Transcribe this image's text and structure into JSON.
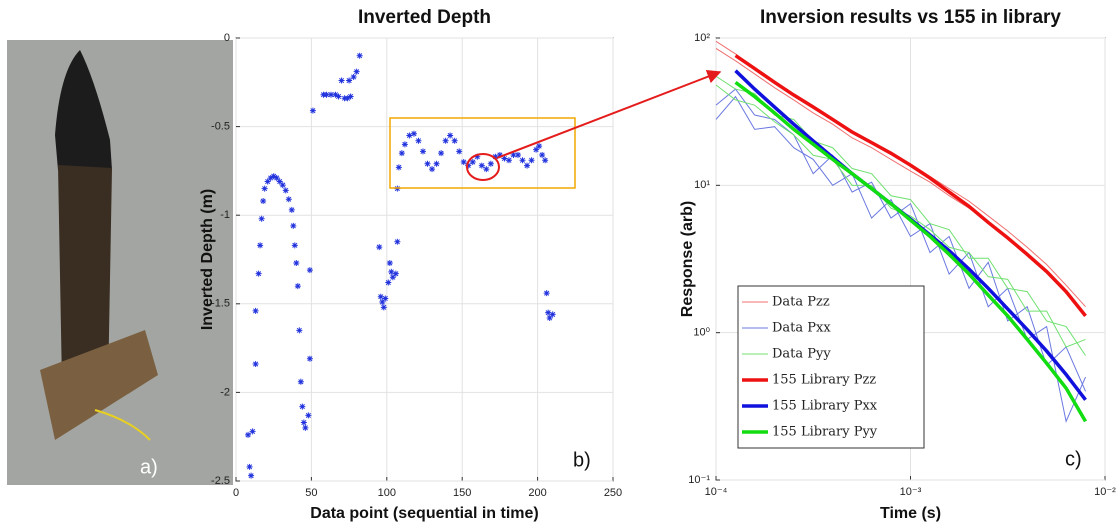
{
  "photo": {
    "panel_label": "a)"
  },
  "chart_data": [
    {
      "type": "scatter",
      "title": "Inverted Depth",
      "xlabel": "Data point (sequential in time)",
      "ylabel": "Inverted Depth (m)",
      "panel_label": "b)",
      "xlim": [
        0,
        250
      ],
      "ylim": [
        -2.5,
        0
      ],
      "xticks": [
        0,
        50,
        100,
        150,
        200,
        250
      ],
      "yticks": [
        -2.5,
        -2,
        -1.5,
        -1,
        -0.5,
        0
      ],
      "grid": true,
      "color": "#2233dd",
      "marker": "*",
      "x": [
        8,
        9,
        10,
        11,
        13,
        13,
        15,
        16,
        17,
        18,
        19,
        21,
        23,
        25,
        27,
        29,
        31,
        33,
        35,
        37,
        38,
        39,
        40,
        41,
        42,
        43,
        44,
        45,
        46,
        48,
        49,
        49,
        51,
        58,
        60,
        63,
        66,
        68,
        70,
        72,
        74,
        76,
        75,
        78,
        80,
        82,
        95,
        96,
        97,
        98,
        99,
        101,
        102,
        103,
        104,
        106,
        107,
        107,
        108,
        110,
        112,
        115,
        118,
        121,
        124,
        127,
        130,
        133,
        136,
        139,
        142,
        145,
        148,
        151,
        154,
        157,
        160,
        163,
        166,
        169,
        172,
        175,
        178,
        181,
        184,
        187,
        190,
        193,
        196,
        199,
        201,
        203,
        205,
        206,
        207,
        208,
        210
      ],
      "y": [
        -2.24,
        -2.42,
        -2.47,
        -2.22,
        -1.84,
        -1.54,
        -1.33,
        -1.17,
        -1.02,
        -0.92,
        -0.85,
        -0.81,
        -0.79,
        -0.78,
        -0.79,
        -0.81,
        -0.83,
        -0.86,
        -0.91,
        -0.97,
        -1.06,
        -1.17,
        -1.27,
        -1.4,
        -1.65,
        -1.94,
        -2.08,
        -2.17,
        -2.2,
        -2.13,
        -1.81,
        -1.31,
        -0.41,
        -0.32,
        -0.32,
        -0.32,
        -0.32,
        -0.33,
        -0.24,
        -0.34,
        -0.34,
        -0.33,
        -0.24,
        -0.22,
        -0.19,
        -0.1,
        -1.18,
        -1.46,
        -1.49,
        -1.52,
        -1.47,
        -1.38,
        -1.27,
        -1.32,
        -1.35,
        -1.33,
        -1.15,
        -0.85,
        -0.73,
        -0.65,
        -0.6,
        -0.55,
        -0.54,
        -0.58,
        -0.64,
        -0.71,
        -0.74,
        -0.71,
        -0.65,
        -0.58,
        -0.55,
        -0.58,
        -0.64,
        -0.7,
        -0.72,
        -0.7,
        -0.67,
        -0.72,
        -0.74,
        -0.71,
        -0.67,
        -0.66,
        -0.68,
        -0.69,
        -0.66,
        -0.66,
        -0.69,
        -0.72,
        -0.69,
        -0.63,
        -0.61,
        -0.66,
        -0.69,
        -1.44,
        -1.55,
        -1.58,
        -1.56
      ]
    },
    {
      "type": "line",
      "title": "Inversion results vs 155 in library",
      "xlabel": "Time (s)",
      "ylabel": "Response (arb)",
      "panel_label": "c)",
      "log_x": true,
      "log_y": true,
      "grid": true,
      "legend": "lower left",
      "xlim": [
        0.0001,
        0.01
      ],
      "ylim": [
        0.1,
        100
      ],
      "xticks": [
        {
          "value": 0.0001,
          "label": "10⁻⁴"
        },
        {
          "value": 0.001,
          "label": "10⁻³"
        },
        {
          "value": 0.01,
          "label": "10⁻²"
        }
      ],
      "yticks": [
        {
          "value": 0.1,
          "label": "10⁻¹"
        },
        {
          "value": 1,
          "label": "10⁰"
        },
        {
          "value": 10,
          "label": "10¹"
        },
        {
          "value": 100,
          "label": "10²"
        }
      ],
      "x": [
        0.0001,
        0.000126,
        0.000158,
        0.0002,
        0.000251,
        0.000316,
        0.000398,
        0.000501,
        0.000631,
        0.000794,
        0.001,
        0.00126,
        0.00158,
        0.002,
        0.00251,
        0.00316,
        0.00398,
        0.00501,
        0.00631,
        0.00794
      ],
      "series": [
        {
          "name": "Data Pzz",
          "color": "#f07070",
          "line_width": 1,
          "values": [
            95,
            78,
            62,
            50,
            41,
            34,
            28,
            23,
            19.5,
            16.5,
            14,
            11.5,
            9.5,
            7.8,
            6.2,
            4.9,
            3.8,
            2.9,
            2.1,
            1.5
          ]
        },
        {
          "color": "#f07070",
          "line_width": 1,
          "values": [
            85,
            70,
            57,
            46,
            38,
            31,
            26,
            21,
            18,
            15,
            12.5,
            10.5,
            8.5,
            7,
            5.6,
            4.4,
            3.4,
            2.6,
            1.9,
            1.3
          ]
        },
        {
          "name": "Data Pxx",
          "color": "#6a78e0",
          "line_width": 1,
          "values": [
            35,
            45,
            30,
            28,
            22,
            12,
            16,
            9,
            10.5,
            6,
            7.5,
            3.5,
            4.5,
            2,
            3,
            1.2,
            1.5,
            0.6,
            0.8,
            0.4
          ]
        },
        {
          "color": "#6a78e0",
          "line_width": 1,
          "values": [
            28,
            40,
            24,
            25,
            18,
            15,
            10,
            12,
            6,
            8,
            4.5,
            5.5,
            2.5,
            3.5,
            1.5,
            2,
            0.9,
            1.1,
            0.25,
            0.5
          ]
        },
        {
          "name": "Data Pyy",
          "color": "#70e070",
          "line_width": 1,
          "values": [
            55,
            45,
            42,
            30,
            28,
            20,
            18,
            13,
            12,
            8.5,
            8,
            5.5,
            5,
            3.2,
            3.2,
            2,
            1.9,
            1.2,
            1.1,
            0.7
          ]
        },
        {
          "color": "#70e070",
          "line_width": 1,
          "values": [
            48,
            38,
            35,
            27,
            22,
            16,
            15,
            10,
            10,
            7,
            6.2,
            5,
            3.8,
            3.5,
            2.4,
            2.3,
            1.4,
            1.4,
            0.8,
            0.9
          ]
        },
        {
          "name": "155 Library Pzz",
          "color": "#ee1111",
          "line_width": 3.5,
          "values": [
            null,
            76,
            62,
            50,
            41,
            34,
            28,
            23,
            19.5,
            16.5,
            13.7,
            11.2,
            9,
            7.2,
            5.6,
            4.4,
            3.4,
            2.6,
            1.9,
            1.3
          ]
        },
        {
          "name": "155 Library Pxx",
          "color": "#1111dd",
          "line_width": 3.5,
          "values": [
            null,
            60,
            45,
            34,
            26,
            20,
            15.5,
            12,
            9.5,
            7.5,
            5.9,
            4.6,
            3.6,
            2.7,
            2,
            1.45,
            1.05,
            0.75,
            0.52,
            0.35
          ]
        },
        {
          "name": "155 Library Pyy",
          "color": "#11dd11",
          "line_width": 3.5,
          "values": [
            null,
            50,
            40,
            31,
            24,
            19,
            15,
            12,
            9.5,
            7.5,
            5.8,
            4.5,
            3.4,
            2.5,
            1.8,
            1.3,
            0.9,
            0.62,
            0.42,
            0.25
          ]
        }
      ]
    }
  ]
}
